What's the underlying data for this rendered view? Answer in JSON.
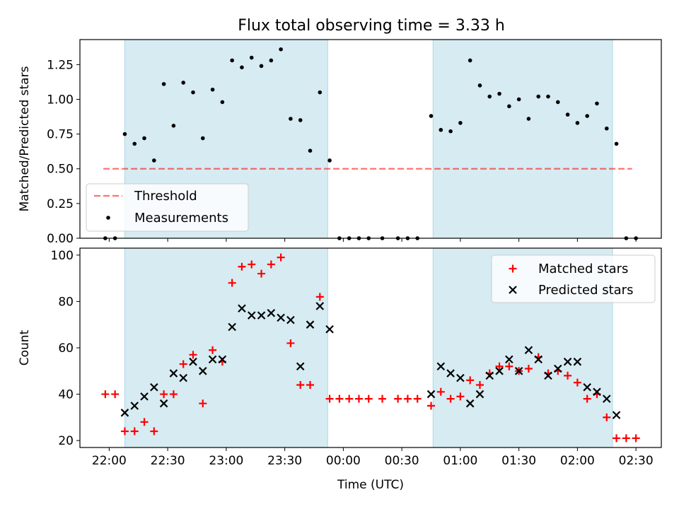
{
  "title": "Flux total observing time = 3.33 h",
  "colors": {
    "band": "#add8e6",
    "threshold": "#ff0000",
    "measurement": "#000000",
    "matched": "#ff0000",
    "predicted": "#000000"
  },
  "chart_data": [
    {
      "type": "scatter",
      "ylabel": "Matched/Predicted stars",
      "ylim": [
        0,
        1.43
      ],
      "yticks": [
        0.0,
        0.25,
        0.5,
        0.75,
        1.0,
        1.25
      ],
      "ytick_labels": [
        "0.00",
        "0.25",
        "0.50",
        "0.75",
        "1.00",
        "1.25"
      ],
      "shaded_intervals": [
        [
          "22:08",
          "23:52"
        ],
        [
          "00:46",
          "02:18"
        ]
      ],
      "threshold": {
        "name": "Threshold",
        "value": 0.5,
        "x_range": [
          "21:57",
          "02:28"
        ],
        "style": "dashed"
      },
      "legend": {
        "position": "lower-left",
        "entries": [
          "Threshold",
          "Measurements"
        ]
      },
      "series": [
        {
          "name": "Measurements",
          "marker": "dot",
          "points": [
            [
              "21:58",
              0.0
            ],
            [
              "22:03",
              0.0
            ],
            [
              "22:08",
              0.75
            ],
            [
              "22:13",
              0.68
            ],
            [
              "22:18",
              0.72
            ],
            [
              "22:23",
              0.56
            ],
            [
              "22:28",
              1.11
            ],
            [
              "22:33",
              0.81
            ],
            [
              "22:38",
              1.12
            ],
            [
              "22:43",
              1.05
            ],
            [
              "22:48",
              0.72
            ],
            [
              "22:53",
              1.07
            ],
            [
              "22:58",
              0.98
            ],
            [
              "23:03",
              1.28
            ],
            [
              "23:08",
              1.23
            ],
            [
              "23:13",
              1.3
            ],
            [
              "23:18",
              1.24
            ],
            [
              "23:23",
              1.28
            ],
            [
              "23:28",
              1.36
            ],
            [
              "23:33",
              0.86
            ],
            [
              "23:38",
              0.85
            ],
            [
              "23:43",
              0.63
            ],
            [
              "23:48",
              1.05
            ],
            [
              "23:53",
              0.56
            ],
            [
              "23:58",
              0.0
            ],
            [
              "00:03",
              0.0
            ],
            [
              "00:08",
              0.0
            ],
            [
              "00:13",
              0.0
            ],
            [
              "00:20",
              0.0
            ],
            [
              "00:28",
              0.0
            ],
            [
              "00:33",
              0.0
            ],
            [
              "00:38",
              0.0
            ],
            [
              "00:45",
              0.88
            ],
            [
              "00:50",
              0.78
            ],
            [
              "00:55",
              0.77
            ],
            [
              "01:00",
              0.83
            ],
            [
              "01:05",
              1.28
            ],
            [
              "01:10",
              1.1
            ],
            [
              "01:15",
              1.02
            ],
            [
              "01:20",
              1.04
            ],
            [
              "01:25",
              0.95
            ],
            [
              "01:30",
              1.0
            ],
            [
              "01:35",
              0.86
            ],
            [
              "01:40",
              1.02
            ],
            [
              "01:45",
              1.02
            ],
            [
              "01:50",
              0.98
            ],
            [
              "01:55",
              0.89
            ],
            [
              "02:00",
              0.83
            ],
            [
              "02:05",
              0.88
            ],
            [
              "02:10",
              0.97
            ],
            [
              "02:15",
              0.79
            ],
            [
              "02:20",
              0.68
            ],
            [
              "02:25",
              0.0
            ],
            [
              "02:30",
              0.0
            ]
          ]
        }
      ]
    },
    {
      "type": "scatter",
      "xlabel": "Time (UTC)",
      "ylabel": "Count",
      "ylim": [
        17,
        103
      ],
      "yticks": [
        20,
        40,
        60,
        80,
        100
      ],
      "ytick_labels": [
        "20",
        "40",
        "60",
        "80",
        "100"
      ],
      "x_range": [
        "21:45",
        "02:43"
      ],
      "xticks": [
        "22:00",
        "22:30",
        "23:00",
        "23:30",
        "00:00",
        "00:30",
        "01:00",
        "01:30",
        "02:00",
        "02:30"
      ],
      "shaded_intervals": [
        [
          "22:08",
          "23:52"
        ],
        [
          "00:46",
          "02:18"
        ]
      ],
      "legend": {
        "position": "top-right",
        "entries": [
          "Matched stars",
          "Predicted stars"
        ]
      },
      "series": [
        {
          "name": "Matched stars",
          "marker": "plus",
          "points": [
            [
              "21:58",
              40
            ],
            [
              "22:03",
              40
            ],
            [
              "22:08",
              24
            ],
            [
              "22:13",
              24
            ],
            [
              "22:18",
              28
            ],
            [
              "22:23",
              24
            ],
            [
              "22:28",
              40
            ],
            [
              "22:33",
              40
            ],
            [
              "22:38",
              53
            ],
            [
              "22:43",
              57
            ],
            [
              "22:48",
              36
            ],
            [
              "22:53",
              59
            ],
            [
              "22:58",
              54
            ],
            [
              "23:03",
              88
            ],
            [
              "23:08",
              95
            ],
            [
              "23:13",
              96
            ],
            [
              "23:18",
              92
            ],
            [
              "23:23",
              96
            ],
            [
              "23:28",
              99
            ],
            [
              "23:33",
              62
            ],
            [
              "23:38",
              44
            ],
            [
              "23:43",
              44
            ],
            [
              "23:48",
              82
            ],
            [
              "23:53",
              38
            ],
            [
              "23:58",
              38
            ],
            [
              "00:03",
              38
            ],
            [
              "00:08",
              38
            ],
            [
              "00:13",
              38
            ],
            [
              "00:20",
              38
            ],
            [
              "00:28",
              38
            ],
            [
              "00:33",
              38
            ],
            [
              "00:38",
              38
            ],
            [
              "00:45",
              35
            ],
            [
              "00:50",
              41
            ],
            [
              "00:55",
              38
            ],
            [
              "01:00",
              39
            ],
            [
              "01:05",
              46
            ],
            [
              "01:10",
              44
            ],
            [
              "01:15",
              49
            ],
            [
              "01:20",
              52
            ],
            [
              "01:25",
              52
            ],
            [
              "01:30",
              50
            ],
            [
              "01:35",
              51
            ],
            [
              "01:40",
              56
            ],
            [
              "01:45",
              49
            ],
            [
              "01:50",
              50
            ],
            [
              "01:55",
              48
            ],
            [
              "02:00",
              45
            ],
            [
              "02:05",
              38
            ],
            [
              "02:10",
              40
            ],
            [
              "02:15",
              30
            ],
            [
              "02:20",
              21
            ],
            [
              "02:25",
              21
            ],
            [
              "02:30",
              21
            ]
          ]
        },
        {
          "name": "Predicted stars",
          "marker": "x",
          "points": [
            [
              "22:08",
              32
            ],
            [
              "22:13",
              35
            ],
            [
              "22:18",
              39
            ],
            [
              "22:23",
              43
            ],
            [
              "22:28",
              36
            ],
            [
              "22:33",
              49
            ],
            [
              "22:38",
              47
            ],
            [
              "22:43",
              54
            ],
            [
              "22:48",
              50
            ],
            [
              "22:53",
              55
            ],
            [
              "22:58",
              55
            ],
            [
              "23:03",
              69
            ],
            [
              "23:08",
              77
            ],
            [
              "23:13",
              74
            ],
            [
              "23:18",
              74
            ],
            [
              "23:23",
              75
            ],
            [
              "23:28",
              73
            ],
            [
              "23:33",
              72
            ],
            [
              "23:38",
              52
            ],
            [
              "23:43",
              70
            ],
            [
              "23:48",
              78
            ],
            [
              "23:53",
              68
            ],
            [
              "00:45",
              40
            ],
            [
              "00:50",
              52
            ],
            [
              "00:55",
              49
            ],
            [
              "01:00",
              47
            ],
            [
              "01:05",
              36
            ],
            [
              "01:10",
              40
            ],
            [
              "01:15",
              48
            ],
            [
              "01:20",
              50
            ],
            [
              "01:25",
              55
            ],
            [
              "01:30",
              50
            ],
            [
              "01:35",
              59
            ],
            [
              "01:40",
              55
            ],
            [
              "01:45",
              48
            ],
            [
              "01:50",
              51
            ],
            [
              "01:55",
              54
            ],
            [
              "02:00",
              54
            ],
            [
              "02:05",
              43
            ],
            [
              "02:10",
              41
            ],
            [
              "02:15",
              38
            ],
            [
              "02:20",
              31
            ]
          ]
        }
      ]
    }
  ]
}
